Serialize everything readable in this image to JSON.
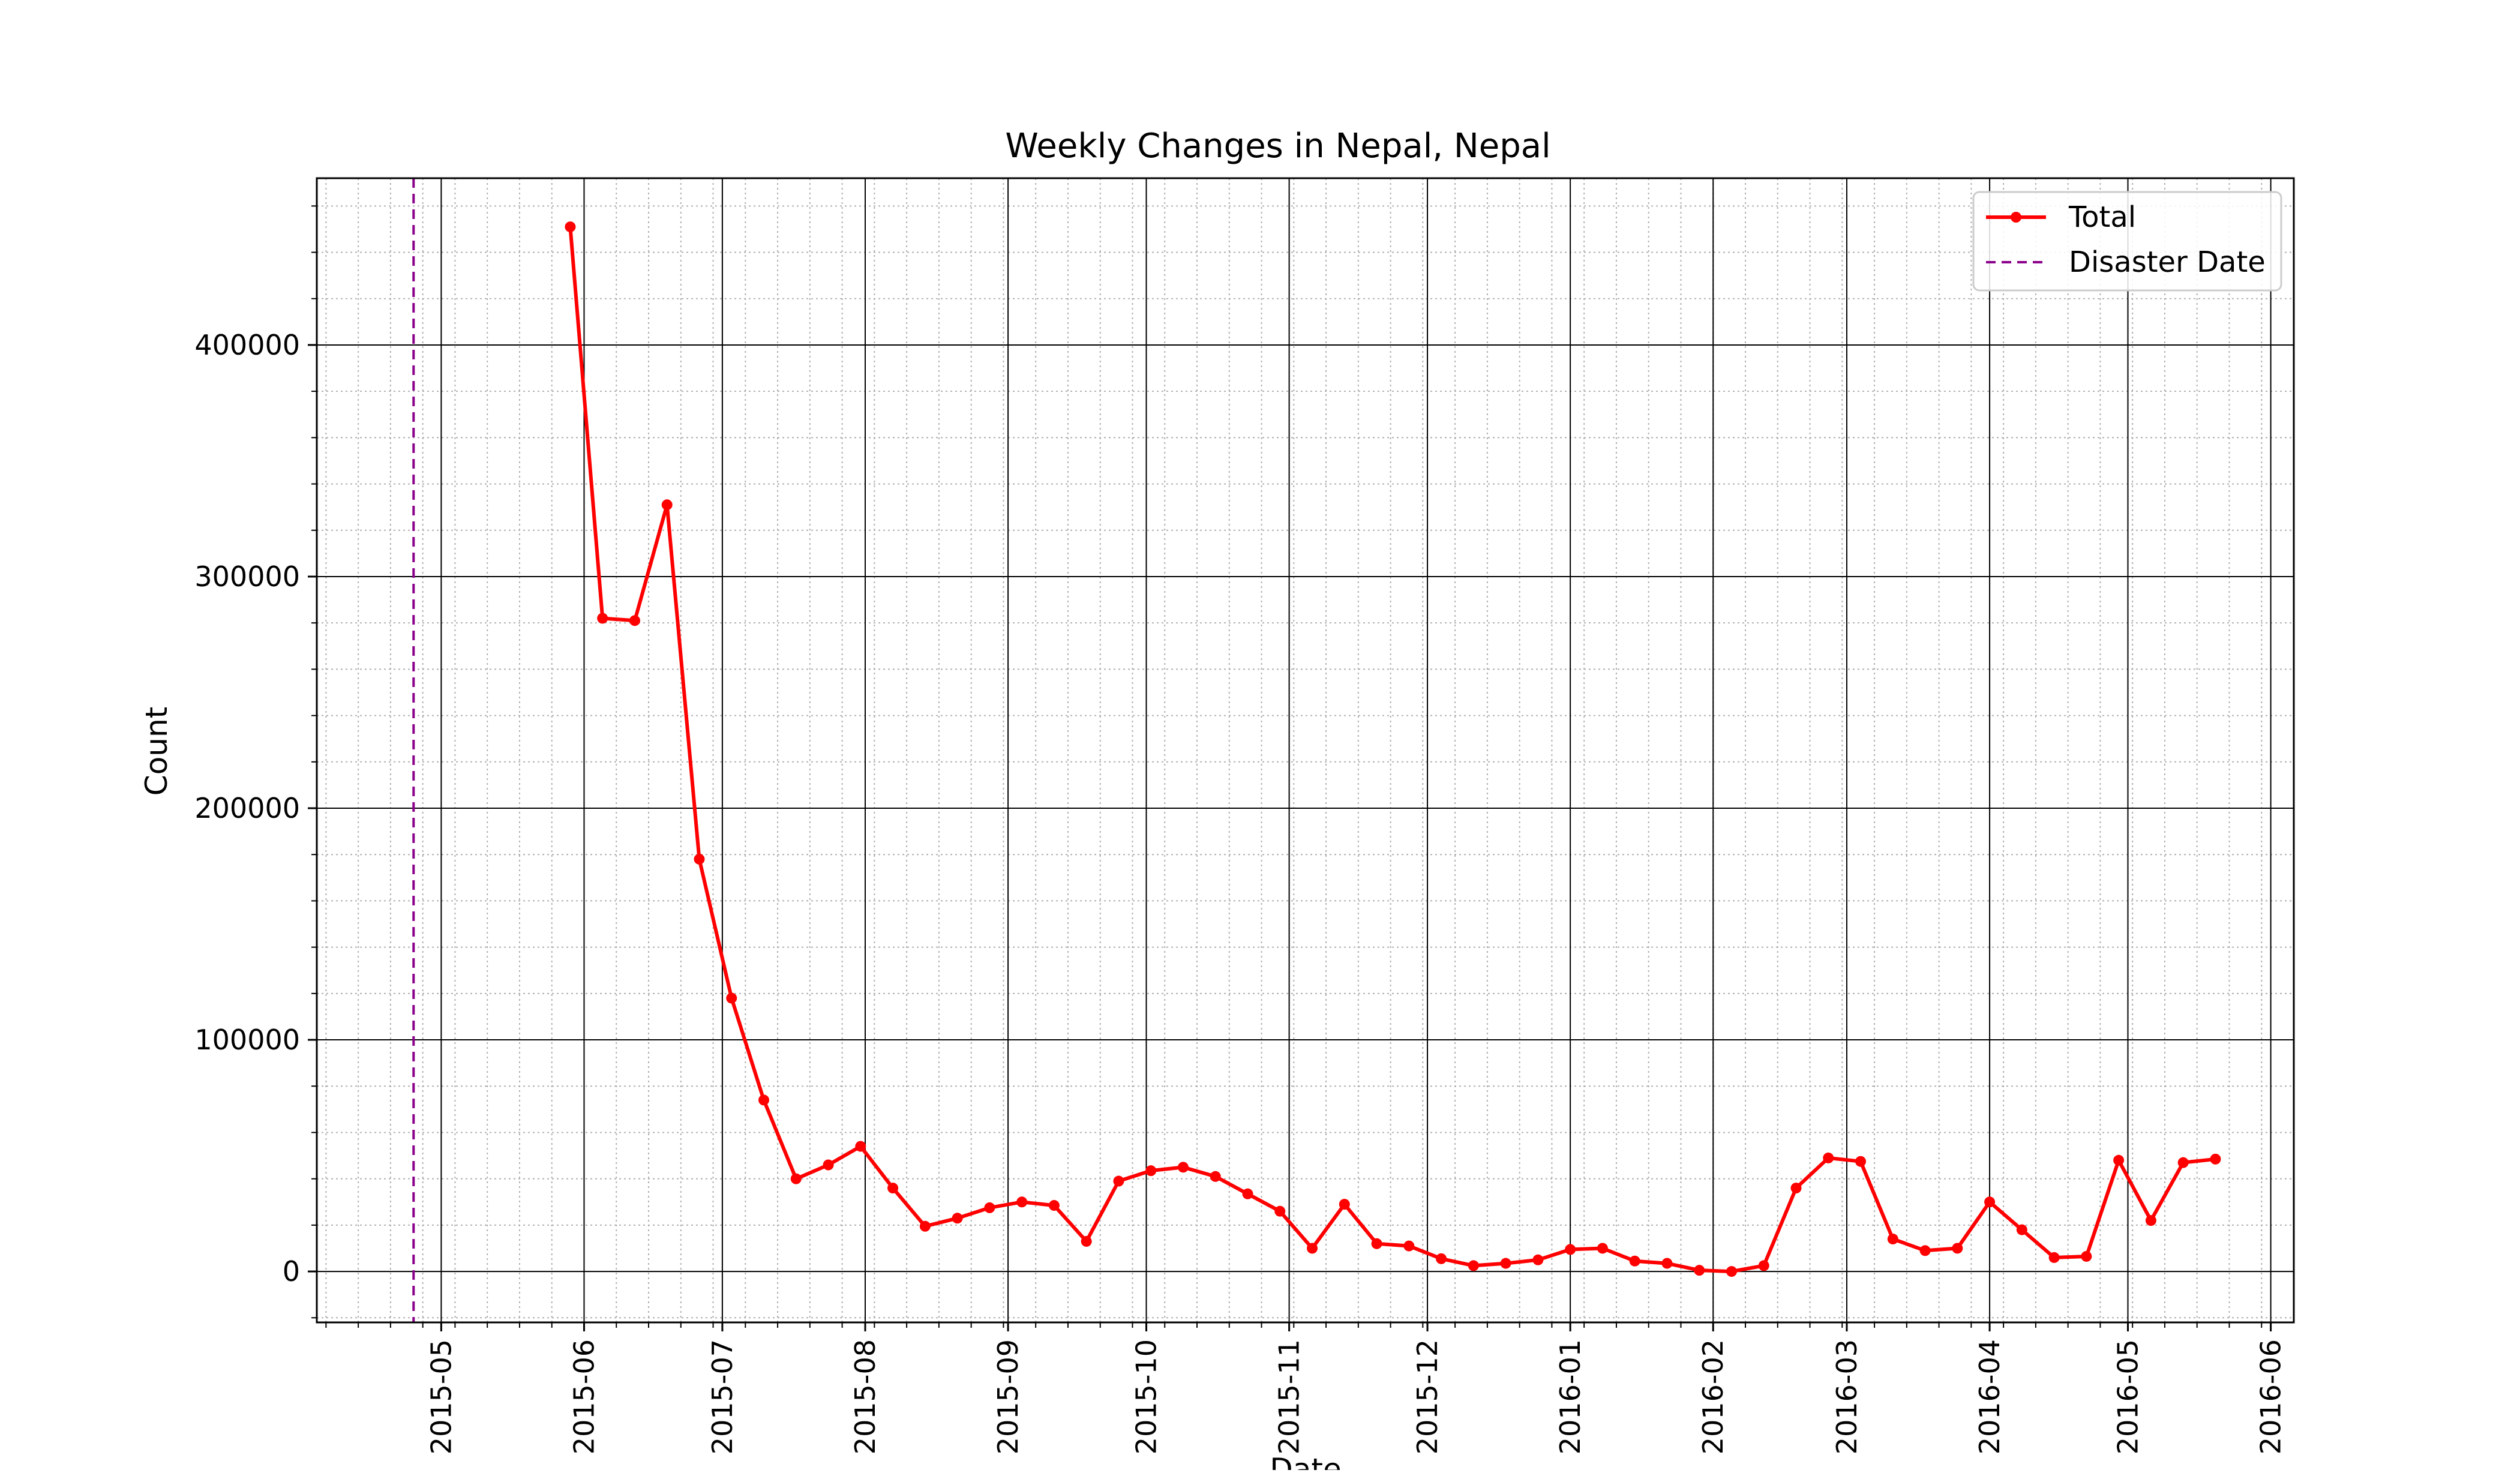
{
  "chart_data": {
    "type": "line",
    "title": "Weekly Changes in Nepal, Nepal",
    "xlabel": "Date",
    "ylabel": "Count",
    "x_axis_kind": "date",
    "xlim": [
      "2015-04-04",
      "2016-06-06"
    ],
    "ylim": [
      -22000,
      472000
    ],
    "x_major_ticks": [
      "2015-05-01",
      "2015-06-01",
      "2015-07-01",
      "2015-08-01",
      "2015-09-01",
      "2015-10-01",
      "2015-11-01",
      "2015-12-01",
      "2016-01-01",
      "2016-02-01",
      "2016-03-01",
      "2016-04-01",
      "2016-05-01",
      "2016-06-01"
    ],
    "x_tick_labels": [
      "2015-05",
      "2015-06",
      "2015-07",
      "2015-08",
      "2015-09",
      "2015-10",
      "2015-11",
      "2015-12",
      "2016-01",
      "2016-02",
      "2016-03",
      "2016-04",
      "2016-05",
      "2016-06"
    ],
    "y_major_ticks": [
      0,
      100000,
      200000,
      300000,
      400000
    ],
    "y_tick_labels": [
      "0",
      "100000",
      "200000",
      "300000",
      "400000"
    ],
    "grid": {
      "major": true,
      "minor": true
    },
    "legend": {
      "placement": "top-right",
      "entries": [
        "Total",
        "Disaster Date"
      ]
    },
    "series": [
      {
        "name": "Total",
        "color": "#ff0000",
        "marker": "circle",
        "x": [
          "2015-05-29",
          "2015-06-05",
          "2015-06-12",
          "2015-06-19",
          "2015-06-26",
          "2015-07-03",
          "2015-07-10",
          "2015-07-17",
          "2015-07-24",
          "2015-07-31",
          "2015-08-07",
          "2015-08-14",
          "2015-08-21",
          "2015-08-28",
          "2015-09-04",
          "2015-09-11",
          "2015-09-18",
          "2015-09-25",
          "2015-10-02",
          "2015-10-09",
          "2015-10-16",
          "2015-10-23",
          "2015-10-30",
          "2015-11-06",
          "2015-11-13",
          "2015-11-20",
          "2015-11-27",
          "2015-12-04",
          "2015-12-11",
          "2015-12-18",
          "2015-12-25",
          "2016-01-01",
          "2016-01-08",
          "2016-01-15",
          "2016-01-22",
          "2016-01-29",
          "2016-02-05",
          "2016-02-12",
          "2016-02-19",
          "2016-02-26",
          "2016-03-04",
          "2016-03-11",
          "2016-03-18",
          "2016-03-25",
          "2016-04-01",
          "2016-04-08",
          "2016-04-15",
          "2016-04-22",
          "2016-04-29",
          "2016-05-06",
          "2016-05-13",
          "2016-05-20"
        ],
        "values": [
          451000,
          282000,
          281000,
          331000,
          178000,
          118000,
          74000,
          40000,
          46000,
          54000,
          36000,
          19500,
          23000,
          27500,
          30000,
          28500,
          13000,
          39000,
          43500,
          45000,
          41000,
          33500,
          26000,
          10000,
          29000,
          12000,
          11000,
          5500,
          2500,
          3500,
          5000,
          9500,
          10000,
          4500,
          3500,
          500,
          0,
          2500,
          36000,
          49000,
          47500,
          14000,
          9000,
          10000,
          30000,
          18000,
          6000,
          6500,
          48000,
          22000,
          47000,
          48500
        ]
      }
    ],
    "reference_lines": [
      {
        "name": "Disaster Date",
        "x": "2015-04-25",
        "color": "#8b008b",
        "style": "dashed"
      }
    ]
  }
}
